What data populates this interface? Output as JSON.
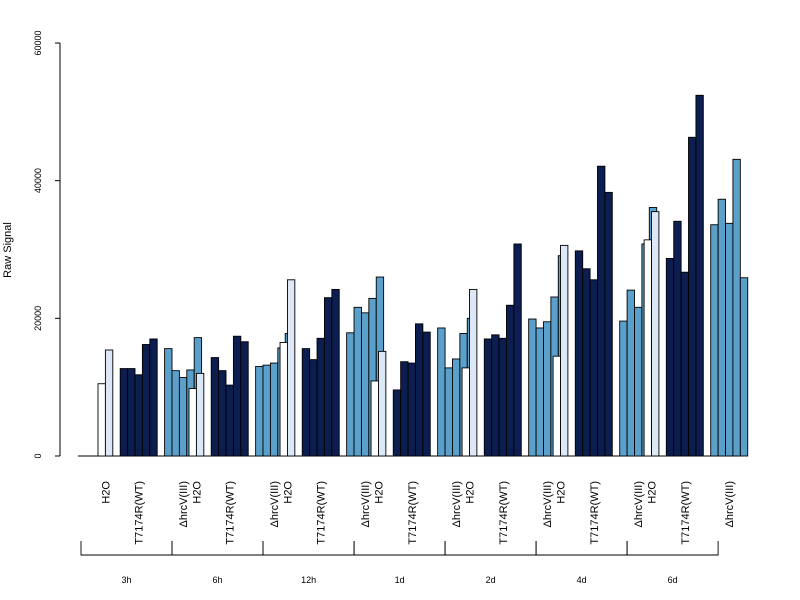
{
  "chart_data": {
    "type": "bar",
    "ylabel": "Raw Signal",
    "xlabel": "",
    "title": "",
    "ylim": [
      0,
      60000
    ],
    "yticks": [
      0,
      20000,
      40000,
      60000
    ],
    "grid": false,
    "group_labels": [
      "H2O",
      "T7174R(WT)",
      "ΔhrcV(III)"
    ],
    "group_colors": [
      "#dce8f6",
      "#0c1d4f",
      "#5ba0cb"
    ],
    "time_points": [
      {
        "label": "3h",
        "groups": [
          [
            10500,
            15400
          ],
          [
            12700,
            12700,
            11800,
            16200,
            17000
          ],
          [
            15600,
            12400,
            11400,
            12500,
            17200
          ]
        ]
      },
      {
        "label": "6h",
        "groups": [
          [
            9800,
            12000
          ],
          [
            14300,
            12400,
            10300,
            17400,
            16600
          ],
          [
            13000,
            13200,
            13500,
            15700,
            17800
          ]
        ]
      },
      {
        "label": "12h",
        "groups": [
          [
            16500,
            25600
          ],
          [
            15600,
            14000,
            17100,
            23000,
            24200
          ],
          [
            17900,
            21600,
            20800,
            22900,
            26000
          ]
        ]
      },
      {
        "label": "1d",
        "groups": [
          [
            10900,
            15200
          ],
          [
            9600,
            13700,
            13500,
            19200,
            18000
          ],
          [
            18600,
            12800,
            14100,
            17800,
            20000
          ]
        ]
      },
      {
        "label": "2d",
        "groups": [
          [
            12800,
            24200
          ],
          [
            17000,
            17600,
            17100,
            21900,
            30800
          ],
          [
            19900,
            18600,
            19500,
            23100,
            29100
          ]
        ]
      },
      {
        "label": "4d",
        "groups": [
          [
            14500,
            30600
          ],
          [
            29800,
            27200,
            25600,
            42100,
            38300
          ],
          [
            19600,
            24100,
            21600,
            30800,
            36100
          ]
        ]
      },
      {
        "label": "6d",
        "groups": [
          [
            31400,
            35500
          ],
          [
            28700,
            34100,
            26700,
            46300,
            52400
          ],
          [
            33600,
            37300,
            33800,
            43100,
            25900
          ]
        ]
      }
    ]
  }
}
